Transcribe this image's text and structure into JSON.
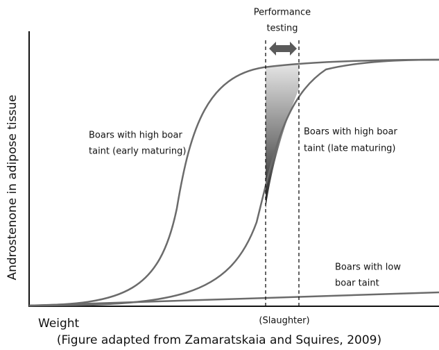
{
  "annotation": [
    "Performance",
    "testing"
  ],
  "y_axis_label": "Androstenone in adipose tissue",
  "x_axis_label": "Weight",
  "slaughter_label": "(Slaughter)",
  "caption": "(Figure adapted from Zamaratskaia and Squires, 2009)",
  "curve_labels": [
    [
      "Boars with high boar",
      "taint (early maturing)"
    ],
    [
      "Boars with high boar",
      "taint (late maturing)"
    ],
    [
      "Boars with low",
      "boar taint"
    ]
  ]
}
